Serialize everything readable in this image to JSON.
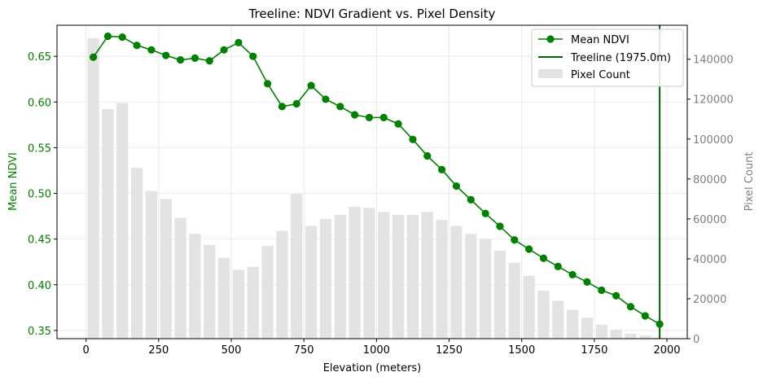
{
  "chart_data": {
    "type": "bar",
    "title": "Treeline: NDVI Gradient vs. Pixel Density",
    "xlabel": "Elevation (meters)",
    "ylabel_left": "Mean NDVI",
    "ylabel_right": "Pixel Count",
    "xlim": [
      -100,
      2070
    ],
    "ylim_left": [
      0.341,
      0.684
    ],
    "ylim_right": [
      0,
      157000
    ],
    "x_ticks": [
      "0",
      "250",
      "500",
      "750",
      "1000",
      "1250",
      "1500",
      "1750",
      "2000"
    ],
    "y_left_ticks": [
      "0.35",
      "0.40",
      "0.45",
      "0.50",
      "0.55",
      "0.60",
      "0.65"
    ],
    "y_right_ticks": [
      "0",
      "20000",
      "40000",
      "60000",
      "80000",
      "100000",
      "120000",
      "140000"
    ],
    "grid": true,
    "legend_position": "top-right",
    "legend": [
      "Mean NDVI",
      "Treeline (1975.0m)",
      "Pixel Count"
    ],
    "colors": {
      "ndvi": "#008000",
      "treeline": "#006400",
      "bars": "#e3e3e3",
      "right_axis": "#808080"
    },
    "treeline_x": 1975,
    "x": [
      25,
      75,
      125,
      175,
      225,
      275,
      325,
      375,
      425,
      475,
      525,
      575,
      625,
      675,
      725,
      775,
      825,
      875,
      925,
      975,
      1025,
      1075,
      1125,
      1175,
      1225,
      1275,
      1325,
      1375,
      1425,
      1475,
      1525,
      1575,
      1625,
      1675,
      1725,
      1775,
      1825,
      1875,
      1925,
      1975
    ],
    "series": [
      {
        "name": "Pixel Count",
        "kind": "bar",
        "axis": "right",
        "values": [
          150500,
          115000,
          118000,
          85500,
          74000,
          70000,
          60500,
          52500,
          47000,
          40500,
          34500,
          36000,
          46500,
          54000,
          72500,
          56500,
          60000,
          62000,
          66000,
          65500,
          63500,
          62000,
          62000,
          63500,
          59500,
          56500,
          52500,
          50000,
          44000,
          38000,
          31500,
          24000,
          19000,
          14500,
          10500,
          7000,
          4500,
          2500,
          1500,
          500
        ]
      },
      {
        "name": "Mean NDVI",
        "kind": "line",
        "axis": "left",
        "values": [
          0.649,
          0.672,
          0.671,
          0.662,
          0.657,
          0.651,
          0.646,
          0.648,
          0.645,
          0.657,
          0.665,
          0.65,
          0.62,
          0.595,
          0.598,
          0.618,
          0.603,
          0.595,
          0.586,
          0.583,
          0.583,
          0.576,
          0.559,
          0.541,
          0.526,
          0.508,
          0.493,
          0.478,
          0.464,
          0.449,
          0.439,
          0.429,
          0.42,
          0.411,
          0.403,
          0.394,
          0.388,
          0.376,
          0.366,
          0.357
        ]
      }
    ]
  }
}
